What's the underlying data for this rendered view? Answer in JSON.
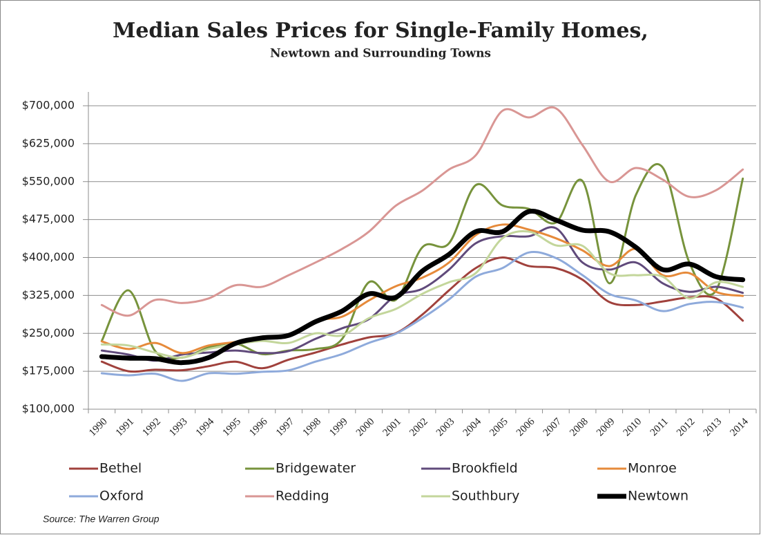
{
  "chart_data": {
    "type": "line",
    "title": "Median Sales Prices for Single-Family Homes,",
    "subtitle": "Newtown and Surrounding Towns",
    "source": "Source: The Warren Group",
    "categories": [
      "1990",
      "1991",
      "1992",
      "1993",
      "1994",
      "1995",
      "1996",
      "1997",
      "1998",
      "1999",
      "2000",
      "2001",
      "2002",
      "2003",
      "2004",
      "2005",
      "2006",
      "2007",
      "2008",
      "2009",
      "2010",
      "2011",
      "2012",
      "2013",
      "2014"
    ],
    "ylim": [
      100000,
      700000
    ],
    "yticks": [
      {
        "value": 100000,
        "label": "$100,000"
      },
      {
        "value": 175000,
        "label": "$175,000"
      },
      {
        "value": 250000,
        "label": "$250,000"
      },
      {
        "value": 325000,
        "label": "$325,000"
      },
      {
        "value": 400000,
        "label": "$400,000"
      },
      {
        "value": 475000,
        "label": "$475,000"
      },
      {
        "value": 550000,
        "label": "$550,000"
      },
      {
        "value": 625000,
        "label": "$625,000"
      },
      {
        "value": 700000,
        "label": "$700,000"
      }
    ],
    "grid": true,
    "series": [
      {
        "name": "Bethel",
        "color": "#a0413c",
        "line_width": 3,
        "values": [
          194000,
          175000,
          178000,
          177000,
          185000,
          194000,
          181000,
          198000,
          212000,
          228000,
          242000,
          250000,
          287000,
          335000,
          379000,
          400000,
          383000,
          379000,
          356000,
          312000,
          306000,
          313000,
          321000,
          319000,
          275000
        ]
      },
      {
        "name": "Bridgewater",
        "color": "#77933c",
        "line_width": 3,
        "values": [
          235000,
          335000,
          215000,
          202000,
          222000,
          230000,
          209000,
          216000,
          219000,
          239000,
          351000,
          316000,
          420000,
          428000,
          543000,
          503000,
          496000,
          469000,
          551000,
          349000,
          524000,
          578000,
          390000,
          335000,
          556000
        ]
      },
      {
        "name": "Brookfield",
        "color": "#604a7b",
        "line_width": 3,
        "values": [
          216000,
          208000,
          196000,
          208000,
          212000,
          216000,
          211000,
          215000,
          239000,
          260000,
          278000,
          324000,
          338000,
          376000,
          428000,
          442000,
          442000,
          458000,
          390000,
          376000,
          390000,
          349000,
          332000,
          342000,
          330000
        ]
      },
      {
        "name": "Monroe",
        "color": "#e68a3a",
        "line_width": 3,
        "values": [
          234000,
          219000,
          231000,
          211000,
          226000,
          233000,
          242000,
          245000,
          275000,
          283000,
          315000,
          343000,
          360000,
          390000,
          444000,
          465000,
          455000,
          438000,
          414000,
          383000,
          417000,
          365000,
          369000,
          332000,
          324000
        ]
      },
      {
        "name": "Oxford",
        "color": "#8eaadb",
        "line_width": 3,
        "values": [
          171000,
          167000,
          170000,
          156000,
          171000,
          170000,
          174000,
          177000,
          194000,
          209000,
          231000,
          249000,
          280000,
          317000,
          362000,
          379000,
          410000,
          399000,
          365000,
          328000,
          315000,
          294000,
          308000,
          312000,
          301000
        ]
      },
      {
        "name": "Redding",
        "color": "#d99694",
        "line_width": 3,
        "values": [
          306000,
          285000,
          316000,
          310000,
          319000,
          345000,
          342000,
          365000,
          390000,
          417000,
          451000,
          502000,
          532000,
          574000,
          602000,
          690000,
          677000,
          695000,
          622000,
          550000,
          577000,
          554000,
          520000,
          533000,
          574000
        ]
      },
      {
        "name": "Southbury",
        "color": "#c3d69b",
        "line_width": 3,
        "values": [
          228000,
          226000,
          212000,
          202000,
          219000,
          228000,
          235000,
          231000,
          250000,
          246000,
          280000,
          298000,
          328000,
          351000,
          369000,
          438000,
          451000,
          424000,
          423000,
          369000,
          365000,
          362000,
          319000,
          351000,
          342000
        ]
      },
      {
        "name": "Newtown",
        "color": "#000000",
        "line_width": 7,
        "values": [
          204000,
          201000,
          200000,
          192000,
          202000,
          230000,
          241000,
          246000,
          273000,
          294000,
          328000,
          321000,
          373000,
          406000,
          451000,
          451000,
          491000,
          474000,
          454000,
          451000,
          420000,
          376000,
          387000,
          362000,
          356000
        ]
      }
    ]
  }
}
